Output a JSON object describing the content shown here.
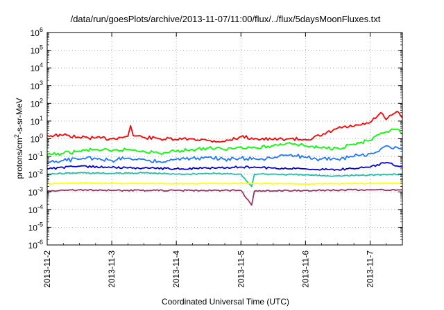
{
  "chart_data": {
    "type": "line",
    "title": "/data/run/goesPlots/archive/2013-11-07/11:00/flux/../flux/5daysMoonFluxes.txt",
    "xlabel": "Coordinated Universal Time (UTC)",
    "ylabel": {
      "prefix": "protons/cm",
      "sup": "2",
      "suffix": "-s-sr-MeV"
    },
    "yscale": "log",
    "ylim": [
      1e-06,
      1000000.0
    ],
    "xlim": [
      "2013-11-02",
      "2013-11-07 12:00"
    ],
    "grid": true,
    "y_ticks": [
      {
        "value": 1e-06,
        "label": "10",
        "exp": "-6"
      },
      {
        "value": 1e-05,
        "label": "10",
        "exp": "-5"
      },
      {
        "value": 0.0001,
        "label": "10",
        "exp": "-4"
      },
      {
        "value": 0.001,
        "label": "10",
        "exp": "-3"
      },
      {
        "value": 0.01,
        "label": "10",
        "exp": "-2"
      },
      {
        "value": 0.1,
        "label": "10",
        "exp": "-1"
      },
      {
        "value": 1,
        "label": "10",
        "exp": "0"
      },
      {
        "value": 10,
        "label": "10",
        "exp": "1"
      },
      {
        "value": 100,
        "label": "10",
        "exp": "2"
      },
      {
        "value": 1000,
        "label": "10",
        "exp": "3"
      },
      {
        "value": 10000,
        "label": "10",
        "exp": "4"
      },
      {
        "value": 100000,
        "label": "10",
        "exp": "5"
      },
      {
        "value": 1000000,
        "label": "10",
        "exp": "6"
      }
    ],
    "x_ticks": [
      "2013-11-2",
      "2013-11-3",
      "2013-11-4",
      "2013-11-5",
      "2013-11-6",
      "2013-11-7"
    ],
    "series": [
      {
        "color": "#ff0000",
        "points": [
          [
            "2013-11-02 00:00",
            1.5
          ],
          [
            "2013-11-02 06:00",
            1.6
          ],
          [
            "2013-11-02 12:00",
            1.2
          ],
          [
            "2013-11-02 18:00",
            1.1
          ],
          [
            "2013-11-03 00:00",
            1.0
          ],
          [
            "2013-11-03 06:00",
            1.4
          ],
          [
            "2013-11-03 07:00",
            5.5
          ],
          [
            "2013-11-03 08:00",
            1.5
          ],
          [
            "2013-11-03 12:00",
            1.2
          ],
          [
            "2013-11-03 18:00",
            1.0
          ],
          [
            "2013-11-04 00:00",
            0.9
          ],
          [
            "2013-11-04 06:00",
            1.0
          ],
          [
            "2013-11-04 12:00",
            0.8
          ],
          [
            "2013-11-04 18:00",
            0.7
          ],
          [
            "2013-11-05 00:00",
            1.3
          ],
          [
            "2013-11-05 06:00",
            1.0
          ],
          [
            "2013-11-05 12:00",
            0.9
          ],
          [
            "2013-11-05 18:00",
            1.0
          ],
          [
            "2013-11-06 00:00",
            0.9
          ],
          [
            "2013-11-06 06:00",
            1.5
          ],
          [
            "2013-11-06 12:00",
            4.0
          ],
          [
            "2013-11-06 18:00",
            5.0
          ],
          [
            "2013-11-07 00:00",
            8.0
          ],
          [
            "2013-11-07 04:00",
            30.0
          ],
          [
            "2013-11-07 06:00",
            12.0
          ],
          [
            "2013-11-07 10:00",
            35.0
          ],
          [
            "2013-11-07 12:00",
            15.0
          ]
        ]
      },
      {
        "color": "#00ff00",
        "points": [
          [
            "2013-11-02 00:00",
            0.12
          ],
          [
            "2013-11-02 06:00",
            0.15
          ],
          [
            "2013-11-02 12:00",
            0.2
          ],
          [
            "2013-11-02 18:00",
            0.25
          ],
          [
            "2013-11-03 00:00",
            0.2
          ],
          [
            "2013-11-03 06:00",
            0.25
          ],
          [
            "2013-11-03 12:00",
            0.2
          ],
          [
            "2013-11-03 18:00",
            0.15
          ],
          [
            "2013-11-04 00:00",
            0.2
          ],
          [
            "2013-11-04 06:00",
            0.25
          ],
          [
            "2013-11-04 12:00",
            0.3
          ],
          [
            "2013-11-04 18:00",
            0.25
          ],
          [
            "2013-11-05 00:00",
            0.35
          ],
          [
            "2013-11-05 06:00",
            0.3
          ],
          [
            "2013-11-05 12:00",
            0.4
          ],
          [
            "2013-11-05 18:00",
            0.6
          ],
          [
            "2013-11-06 00:00",
            0.4
          ],
          [
            "2013-11-06 06:00",
            0.3
          ],
          [
            "2013-11-06 12:00",
            0.3
          ],
          [
            "2013-11-06 18:00",
            0.5
          ],
          [
            "2013-11-07 00:00",
            0.8
          ],
          [
            "2013-11-07 06:00",
            2.5
          ],
          [
            "2013-11-07 10:00",
            3.5
          ],
          [
            "2013-11-07 12:00",
            1.8
          ]
        ]
      },
      {
        "color": "#1e78ff",
        "points": [
          [
            "2013-11-02 00:00",
            0.04
          ],
          [
            "2013-11-02 06:00",
            0.06
          ],
          [
            "2013-11-02 12:00",
            0.07
          ],
          [
            "2013-11-02 18:00",
            0.08
          ],
          [
            "2013-11-03 00:00",
            0.06
          ],
          [
            "2013-11-03 06:00",
            0.08
          ],
          [
            "2013-11-03 12:00",
            0.07
          ],
          [
            "2013-11-03 18:00",
            0.05
          ],
          [
            "2013-11-04 00:00",
            0.07
          ],
          [
            "2013-11-04 06:00",
            0.08
          ],
          [
            "2013-11-04 12:00",
            0.09
          ],
          [
            "2013-11-04 18:00",
            0.07
          ],
          [
            "2013-11-05 00:00",
            0.08
          ],
          [
            "2013-11-05 06:00",
            0.07
          ],
          [
            "2013-11-05 12:00",
            0.08
          ],
          [
            "2013-11-05 18:00",
            0.12
          ],
          [
            "2013-11-06 00:00",
            0.09
          ],
          [
            "2013-11-06 06:00",
            0.07
          ],
          [
            "2013-11-06 12:00",
            0.07
          ],
          [
            "2013-11-06 18:00",
            0.1
          ],
          [
            "2013-11-07 00:00",
            0.15
          ],
          [
            "2013-11-07 06:00",
            0.4
          ],
          [
            "2013-11-07 12:00",
            0.25
          ]
        ]
      },
      {
        "color": "#0000dd",
        "points": [
          [
            "2013-11-02 00:00",
            0.02
          ],
          [
            "2013-11-02 12:00",
            0.028
          ],
          [
            "2013-11-03 00:00",
            0.024
          ],
          [
            "2013-11-03 12:00",
            0.022
          ],
          [
            "2013-11-04 00:00",
            0.02
          ],
          [
            "2013-11-04 12:00",
            0.022
          ],
          [
            "2013-11-05 00:00",
            0.025
          ],
          [
            "2013-11-05 12:00",
            0.022
          ],
          [
            "2013-11-06 00:00",
            0.02
          ],
          [
            "2013-11-06 12:00",
            0.018
          ],
          [
            "2013-11-07 00:00",
            0.025
          ],
          [
            "2013-11-07 06:00",
            0.045
          ],
          [
            "2013-11-07 12:00",
            0.025
          ]
        ]
      },
      {
        "color": "#20c0a8",
        "points": [
          [
            "2013-11-02 00:00",
            0.01
          ],
          [
            "2013-11-02 12:00",
            0.012
          ],
          [
            "2013-11-03 00:00",
            0.011
          ],
          [
            "2013-11-03 12:00",
            0.012
          ],
          [
            "2013-11-04 00:00",
            0.01
          ],
          [
            "2013-11-04 12:00",
            0.011
          ],
          [
            "2013-11-05 00:00",
            0.01
          ],
          [
            "2013-11-05 04:00",
            0.002
          ],
          [
            "2013-11-05 05:00",
            0.01
          ],
          [
            "2013-11-05 12:00",
            0.01
          ],
          [
            "2013-11-06 00:00",
            0.009
          ],
          [
            "2013-11-06 12:00",
            0.008
          ],
          [
            "2013-11-07 00:00",
            0.009
          ],
          [
            "2013-11-07 12:00",
            0.01
          ]
        ]
      },
      {
        "color": "#ffff00",
        "points": [
          [
            "2013-11-02 00:00",
            0.0028
          ],
          [
            "2013-11-02 12:00",
            0.0032
          ],
          [
            "2013-11-03 00:00",
            0.003
          ],
          [
            "2013-11-04 00:00",
            0.0029
          ],
          [
            "2013-11-05 00:00",
            0.003
          ],
          [
            "2013-11-06 00:00",
            0.0028
          ],
          [
            "2013-11-07 00:00",
            0.003
          ],
          [
            "2013-11-07 12:00",
            0.0031
          ]
        ]
      },
      {
        "color": "#993366",
        "points": [
          [
            "2013-11-02 00:00",
            0.0011
          ],
          [
            "2013-11-02 12:00",
            0.0013
          ],
          [
            "2013-11-03 00:00",
            0.0012
          ],
          [
            "2013-11-04 00:00",
            0.0012
          ],
          [
            "2013-11-05 00:00",
            0.0012
          ],
          [
            "2013-11-05 04:00",
            0.00018
          ],
          [
            "2013-11-05 05:00",
            0.0011
          ],
          [
            "2013-11-06 00:00",
            0.0012
          ],
          [
            "2013-11-07 00:00",
            0.0013
          ],
          [
            "2013-11-07 12:00",
            0.0013
          ]
        ]
      }
    ]
  }
}
